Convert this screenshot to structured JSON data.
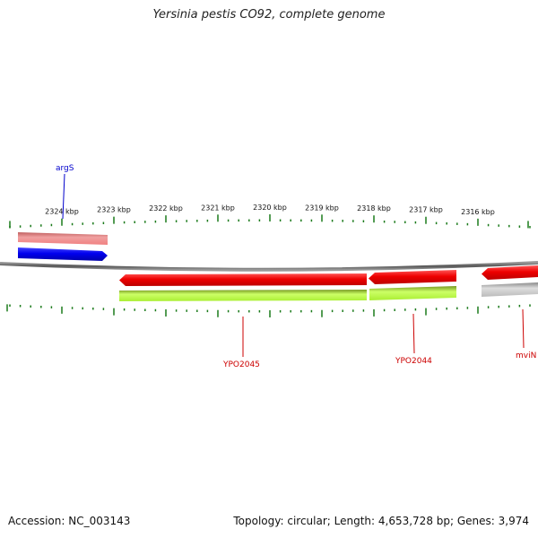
{
  "title": "Yersinia pestis CO92, complete genome",
  "ticks": [
    "2324 kbp",
    "2323 kbp",
    "2322 kbp",
    "2321 kbp",
    "2320 kbp",
    "2319 kbp",
    "2318 kbp",
    "2317 kbp",
    "2316 kbp"
  ],
  "genes": {
    "argS": "argS",
    "ypo2045": "YPO2045",
    "ypo2044": "YPO2044",
    "mviN": "mviN"
  },
  "colors": {
    "forward_cds": "#0000ee",
    "reverse_cds": "#ee0000",
    "forward_feature": "#f08080",
    "reverse_feature": "#aaee33",
    "gray_feature": "#bbbbbb",
    "backbone": "#666666",
    "tick": "#1a7a1a"
  },
  "footer": {
    "accession": "Accession: NC_003143",
    "summary": "Topology: circular; Length: 4,653,728 bp; Genes: 3,974"
  }
}
